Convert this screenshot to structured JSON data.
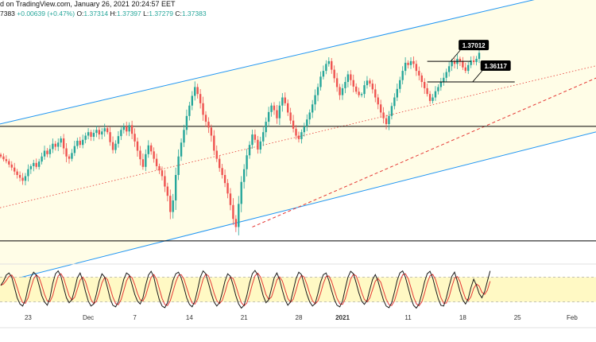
{
  "header": {
    "line1": "d on TradingView.com, January 26, 2021 20:24:57 EET",
    "prefix": "7383 ",
    "change": "+0.00639 (+0.47%)",
    "o_label": "O:",
    "o_value": "1.37314",
    "h_label": "H:",
    "h_value": "1.37397",
    "l_label": "L:",
    "l_value": "1.37279",
    "c_label": "C:",
    "c_value": "1.37383"
  },
  "colors": {
    "up": "#26a69a",
    "down": "#ef5350",
    "channel": "#2196f3",
    "channel_fill": "#fffde7",
    "trend": "#e53935",
    "stoch_k": "#1a1a1a",
    "stoch_d": "#e53935",
    "stoch_band": "#fff9c4"
  },
  "chart_data": {
    "type": "candlestick",
    "ylim": [
      1.288,
      1.387
    ],
    "x_ticks": [
      {
        "label": "23",
        "idx": 10
      },
      {
        "label": "Dec",
        "idx": 32
      },
      {
        "label": "7",
        "idx": 49
      },
      {
        "label": "14",
        "idx": 69
      },
      {
        "label": "21",
        "idx": 89
      },
      {
        "label": "28",
        "idx": 109
      },
      {
        "label": "2021",
        "idx": 125
      },
      {
        "label": "11",
        "idx": 149
      },
      {
        "label": "18",
        "idx": 169
      },
      {
        "label": "25",
        "idx": 189
      },
      {
        "label": "Feb",
        "idx": 209
      }
    ],
    "annotations": [
      {
        "label": "1.37012",
        "price": 1.3701,
        "line": [
          156,
          172
        ]
      },
      {
        "label": "1.36117",
        "price": 1.3612,
        "line": [
          156,
          188
        ]
      }
    ],
    "horizontal_levels": [
      1.342,
      1.2925
    ],
    "channel": {
      "upper": [
        [
          -4,
          1.342
        ],
        [
          152,
          1.3849
        ]
      ],
      "lower": [
        [
          40,
          1.2865
        ],
        [
          216,
          1.3391
        ]
      ],
      "mid": [
        [
          -4,
          1.3058
        ],
        [
          216,
          1.3677
        ]
      ]
    },
    "trendline": {
      "from": [
        92,
        1.2985
      ],
      "to": [
        216,
        1.362
      ]
    },
    "closes": [
      1.329,
      1.3278,
      1.327,
      1.3255,
      1.3242,
      1.3225,
      1.321,
      1.3198,
      1.3185,
      1.3205,
      1.3235,
      1.3248,
      1.3262,
      1.3245,
      1.3268,
      1.329,
      1.3315,
      1.33,
      1.3322,
      1.3345,
      1.3332,
      1.335,
      1.3368,
      1.3325,
      1.329,
      1.328,
      1.3305,
      1.3335,
      1.3358,
      1.334,
      1.3362,
      1.338,
      1.3395,
      1.3375,
      1.3392,
      1.3405,
      1.3385,
      1.3398,
      1.3412,
      1.3395,
      1.3352,
      1.3318,
      1.3345,
      1.3378,
      1.3405,
      1.342,
      1.3398,
      1.3425,
      1.3388,
      1.3355,
      1.3315,
      1.3278,
      1.3245,
      1.33,
      1.3338,
      1.3312,
      1.328,
      1.3248,
      1.323,
      1.3205,
      1.316,
      1.312,
      1.305,
      1.31,
      1.321,
      1.329,
      1.335,
      1.3405,
      1.3465,
      1.351,
      1.3552,
      1.359,
      1.356,
      1.352,
      1.347,
      1.344,
      1.3415,
      1.338,
      1.3315,
      1.328,
      1.324,
      1.321,
      1.3175,
      1.313,
      1.308,
      1.302,
      1.2985,
      1.3085,
      1.318,
      1.3235,
      1.3295,
      1.334,
      1.3385,
      1.3362,
      1.332,
      1.3355,
      1.3395,
      1.344,
      1.3482,
      1.351,
      1.349,
      1.3455,
      1.351,
      1.3545,
      1.352,
      1.348,
      1.3445,
      1.341,
      1.338,
      1.3365,
      1.3395,
      1.342,
      1.345,
      1.348,
      1.3515,
      1.3555,
      1.359,
      1.3635,
      1.366,
      1.369,
      1.3702,
      1.3665,
      1.3628,
      1.359,
      1.3555,
      1.3585,
      1.3612,
      1.3645,
      1.362,
      1.3592,
      1.357,
      1.3555,
      1.356,
      1.3598,
      1.3618,
      1.3605,
      1.358,
      1.3545,
      1.3515,
      1.348,
      1.3455,
      1.343,
      1.3465,
      1.3508,
      1.3545,
      1.3582,
      1.362,
      1.366,
      1.3695,
      1.3685,
      1.3702,
      1.369,
      1.366,
      1.364,
      1.3612,
      1.3585,
      1.356,
      1.353,
      1.3545,
      1.3572,
      1.359,
      1.3612,
      1.363,
      1.3655,
      1.368,
      1.3702,
      1.369,
      1.3712,
      1.3702,
      1.3675,
      1.366,
      1.3685,
      1.3705,
      1.3698,
      1.3712,
      1.3738
    ]
  },
  "stochastic": {
    "band": [
      20,
      80
    ],
    "k": [
      60,
      70,
      85,
      90,
      80,
      55,
      30,
      15,
      10,
      25,
      55,
      80,
      92,
      85,
      60,
      35,
      20,
      12,
      30,
      65,
      88,
      95,
      82,
      55,
      30,
      18,
      25,
      50,
      78,
      90,
      72,
      45,
      22,
      10,
      15,
      40,
      70,
      88,
      80,
      55,
      28,
      12,
      8,
      20,
      48,
      75,
      90,
      85,
      62,
      38,
      22,
      15,
      30,
      60,
      85,
      94,
      80,
      50,
      25,
      10,
      6,
      18,
      45,
      72,
      88,
      92,
      78,
      55,
      30,
      14,
      8,
      22,
      50,
      80,
      95,
      88,
      65,
      40,
      20,
      10,
      18,
      42,
      70,
      88,
      82,
      60,
      35,
      15,
      5,
      12,
      35,
      65,
      88,
      96,
      85,
      60,
      35,
      18,
      25,
      52,
      78,
      90,
      74,
      48,
      25,
      12,
      20,
      48,
      76,
      92,
      86,
      62,
      38,
      20,
      10,
      16,
      40,
      68,
      86,
      90,
      72,
      48,
      26,
      12,
      8,
      22,
      52,
      80,
      94,
      88,
      66,
      42,
      22,
      14,
      24,
      50,
      74,
      86,
      70,
      46,
      24,
      10,
      6,
      18,
      44,
      72,
      90,
      95,
      80,
      55,
      30,
      12,
      5,
      15,
      40,
      68,
      88,
      94,
      78,
      52,
      28,
      12,
      10,
      30,
      58,
      82,
      92,
      70,
      45,
      25,
      15,
      28,
      55,
      75,
      60,
      40,
      30,
      45,
      70,
      95
    ]
  }
}
